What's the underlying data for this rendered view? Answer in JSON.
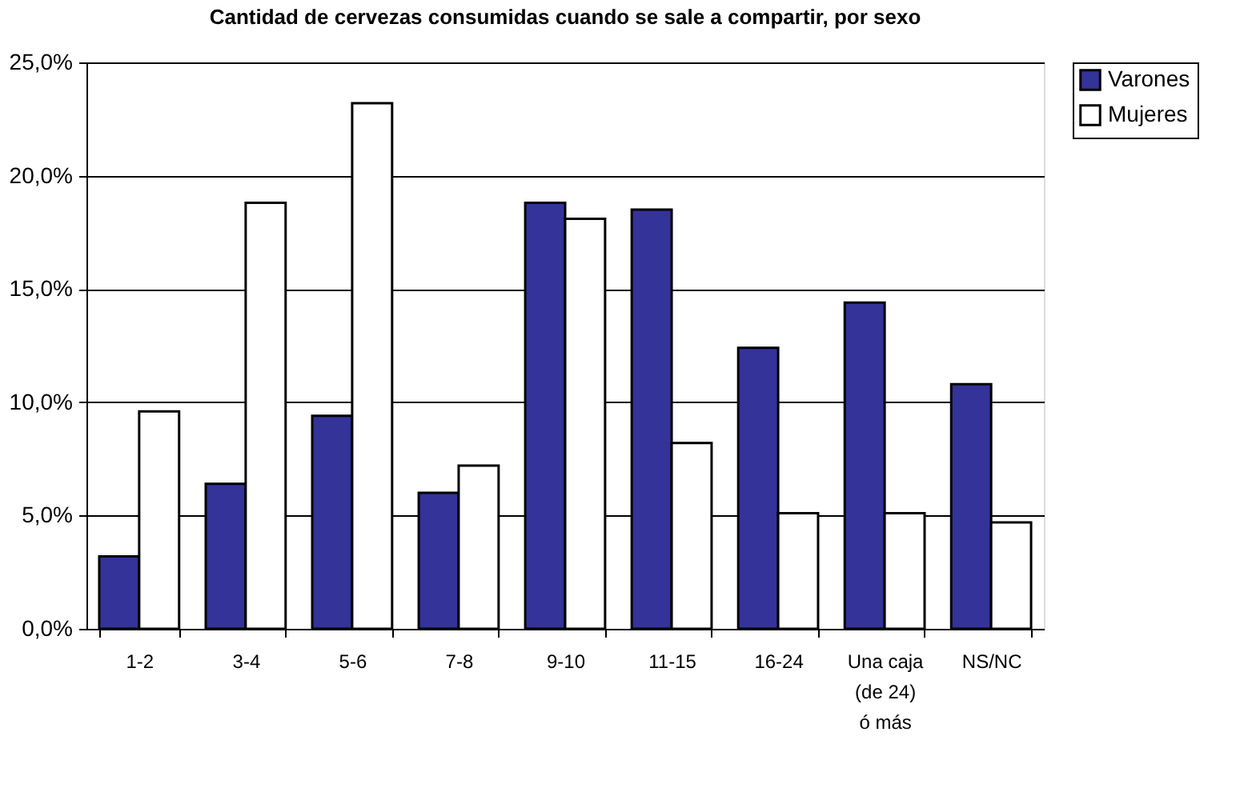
{
  "chart_data": {
    "type": "bar",
    "title": "Cantidad de cervezas consumidas cuando se sale a compartir, por sexo",
    "categories": [
      "1-2",
      "3-4",
      "5-6",
      "7-8",
      "9-10",
      "11-15",
      "16-24",
      "Una caja (de 24) ó más",
      "NS/NC"
    ],
    "series": [
      {
        "name": "Varones",
        "color": "#333399",
        "values": [
          3.2,
          6.4,
          9.4,
          6.0,
          18.8,
          18.5,
          12.4,
          14.4,
          10.8
        ]
      },
      {
        "name": "Mujeres",
        "color": "#ffffff",
        "values": [
          9.6,
          18.8,
          23.2,
          7.2,
          18.1,
          8.2,
          5.1,
          5.1,
          4.7
        ]
      }
    ],
    "ylim": [
      0,
      25
    ],
    "yticks": [
      {
        "value": 0,
        "label": "0,0%"
      },
      {
        "value": 5,
        "label": "5,0%"
      },
      {
        "value": 10,
        "label": "10,0%"
      },
      {
        "value": 15,
        "label": "15,0%"
      },
      {
        "value": 20,
        "label": "20,0%"
      },
      {
        "value": 25,
        "label": "25,0%"
      }
    ],
    "grid": "y",
    "legend": "right"
  }
}
